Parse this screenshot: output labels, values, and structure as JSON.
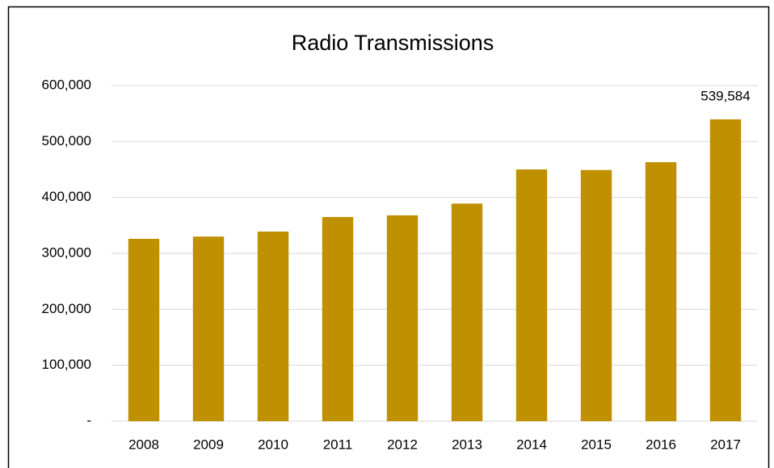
{
  "chart_data": {
    "type": "bar",
    "title": "Radio Transmissions",
    "categories": [
      "2008",
      "2009",
      "2010",
      "2011",
      "2012",
      "2013",
      "2014",
      "2015",
      "2016",
      "2017"
    ],
    "values": [
      326000,
      330000,
      339000,
      365000,
      368000,
      389000,
      450000,
      449000,
      463000,
      539584
    ],
    "value_labels": [
      null,
      null,
      null,
      null,
      null,
      null,
      null,
      null,
      null,
      "539,584"
    ],
    "color": "#bf9000",
    "ylim": [
      0,
      600000
    ],
    "yticks": [
      {
        "value": 0,
        "label": "-"
      },
      {
        "value": 100000,
        "label": "100,000"
      },
      {
        "value": 200000,
        "label": "200,000"
      },
      {
        "value": 300000,
        "label": "300,000"
      },
      {
        "value": 400000,
        "label": "400,000"
      },
      {
        "value": 500000,
        "label": "500,000"
      },
      {
        "value": 600000,
        "label": "600,000"
      }
    ],
    "grid": true
  }
}
